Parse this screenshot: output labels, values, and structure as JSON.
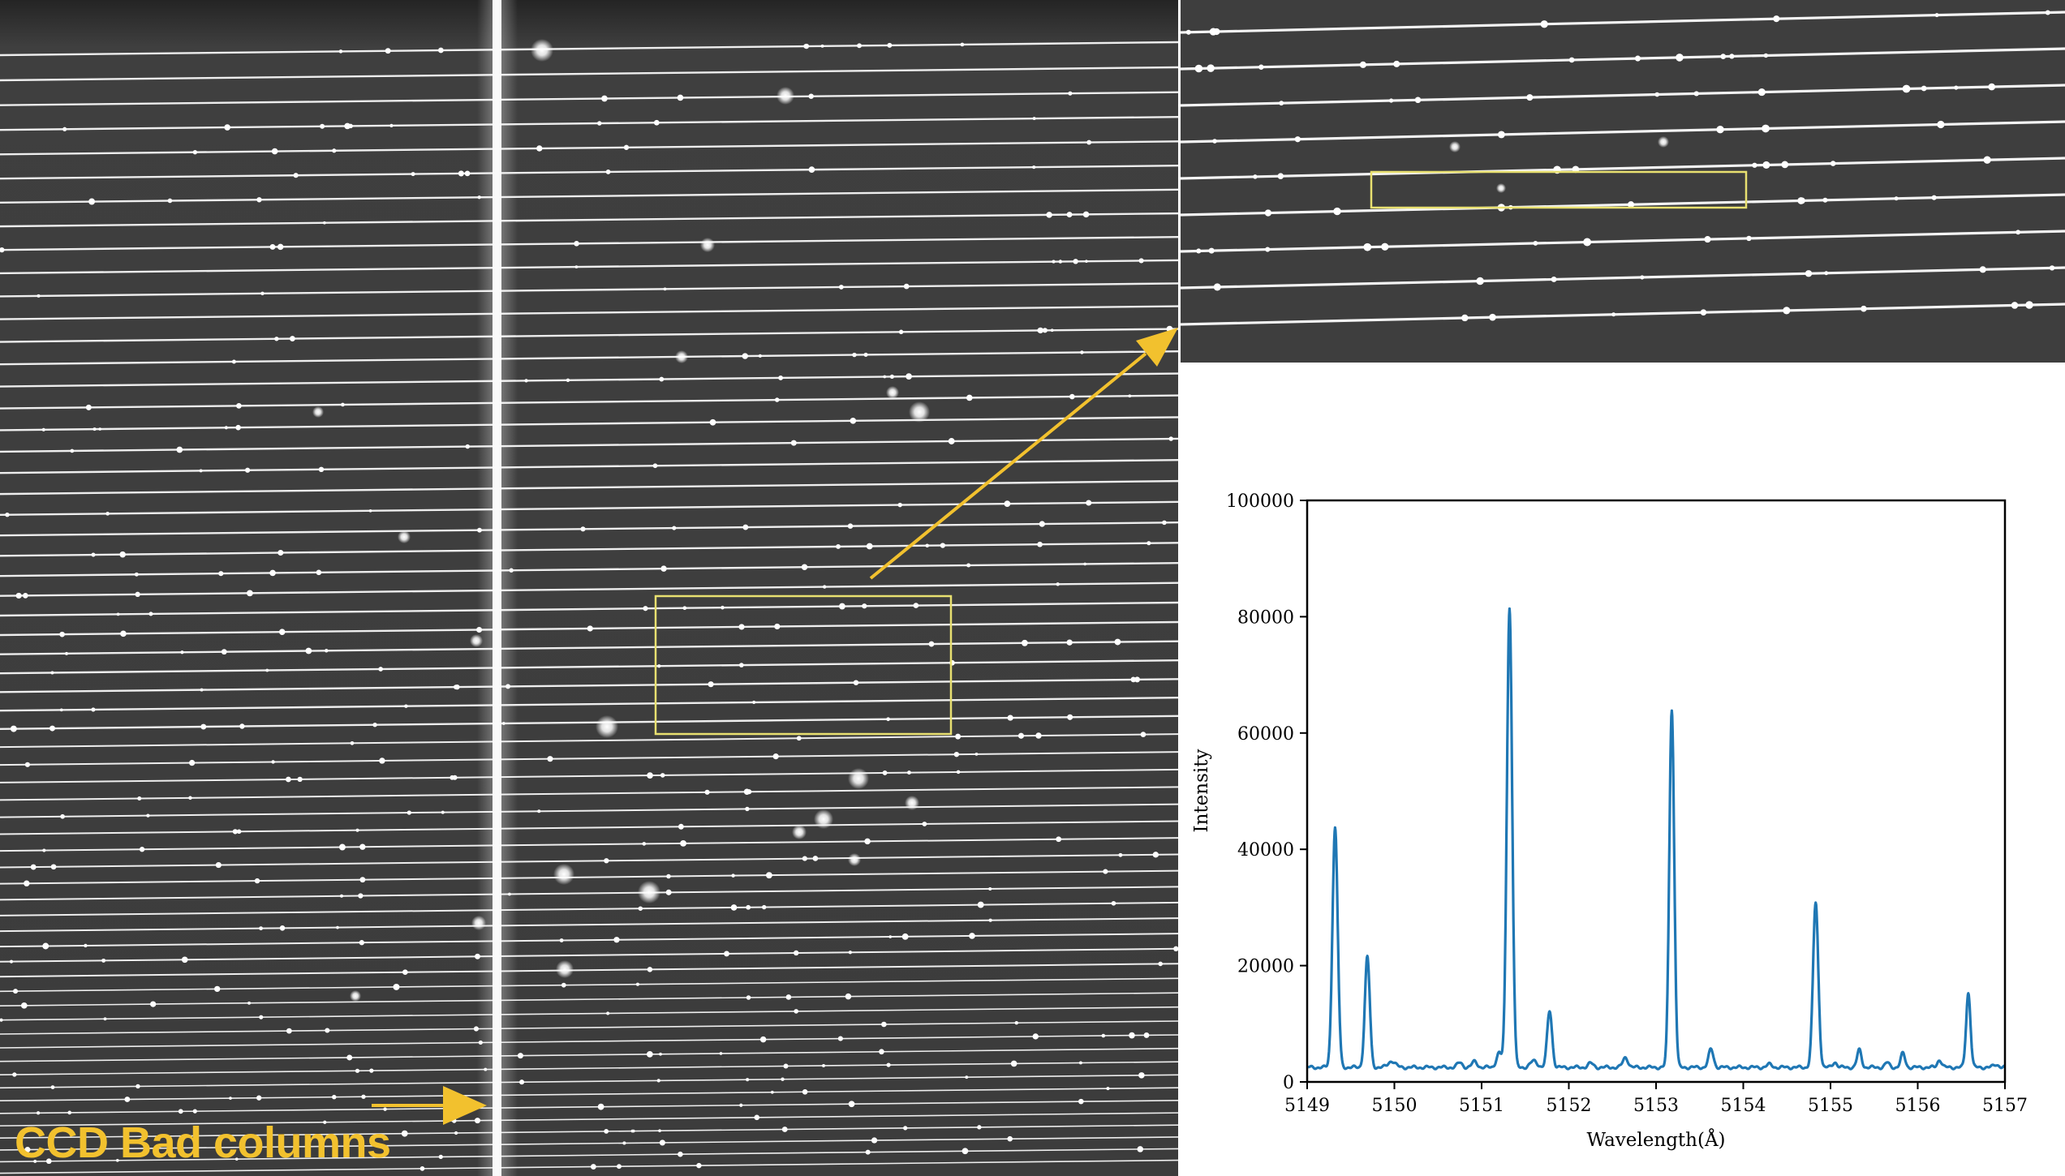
{
  "annotation": {
    "bad_columns_label": "CCD Bad columns",
    "accent_color": "#f2c12e",
    "box_color": "#e8e070"
  },
  "ccd_image": {
    "description_colors": {
      "background": "#3a3a3a",
      "fiber_trace": "#f0f0f0"
    },
    "fiber_traces_shown": true,
    "bad_column_shown": true
  },
  "chart_data": {
    "type": "line",
    "xlabel": "Wavelength(Å)",
    "ylabel": "Intensity",
    "xlim": [
      5149,
      5157
    ],
    "ylim": [
      0,
      100000
    ],
    "xticks": [
      "5149",
      "5150",
      "5151",
      "5152",
      "5153",
      "5154",
      "5155",
      "5156",
      "5157"
    ],
    "yticks": [
      "0",
      "20000",
      "40000",
      "60000",
      "80000",
      "100000"
    ],
    "grid": false,
    "series": [
      {
        "color": "#1f77b4",
        "baseline": 2500,
        "peaks": [
          {
            "x": 5149.32,
            "y": 43700,
            "w": 0.03
          },
          {
            "x": 5149.69,
            "y": 21500,
            "w": 0.028
          },
          {
            "x": 5149.97,
            "y": 3600,
            "w": 0.04
          },
          {
            "x": 5150.75,
            "y": 3300,
            "w": 0.03
          },
          {
            "x": 5150.92,
            "y": 3500,
            "w": 0.03
          },
          {
            "x": 5151.2,
            "y": 5000,
            "w": 0.03
          },
          {
            "x": 5151.32,
            "y": 81500,
            "w": 0.03
          },
          {
            "x": 5151.6,
            "y": 3600,
            "w": 0.04
          },
          {
            "x": 5151.78,
            "y": 12200,
            "w": 0.028
          },
          {
            "x": 5152.25,
            "y": 3200,
            "w": 0.03
          },
          {
            "x": 5152.65,
            "y": 4200,
            "w": 0.03
          },
          {
            "x": 5153.18,
            "y": 64000,
            "w": 0.028
          },
          {
            "x": 5153.63,
            "y": 5600,
            "w": 0.028
          },
          {
            "x": 5154.3,
            "y": 3000,
            "w": 0.03
          },
          {
            "x": 5154.83,
            "y": 30800,
            "w": 0.03
          },
          {
            "x": 5155.05,
            "y": 3400,
            "w": 0.025
          },
          {
            "x": 5155.33,
            "y": 5500,
            "w": 0.025
          },
          {
            "x": 5155.65,
            "y": 3300,
            "w": 0.025
          },
          {
            "x": 5155.83,
            "y": 4900,
            "w": 0.025
          },
          {
            "x": 5156.25,
            "y": 3800,
            "w": 0.025
          },
          {
            "x": 5156.58,
            "y": 15300,
            "w": 0.025
          },
          {
            "x": 5156.9,
            "y": 3000,
            "w": 0.03
          }
        ]
      }
    ]
  }
}
